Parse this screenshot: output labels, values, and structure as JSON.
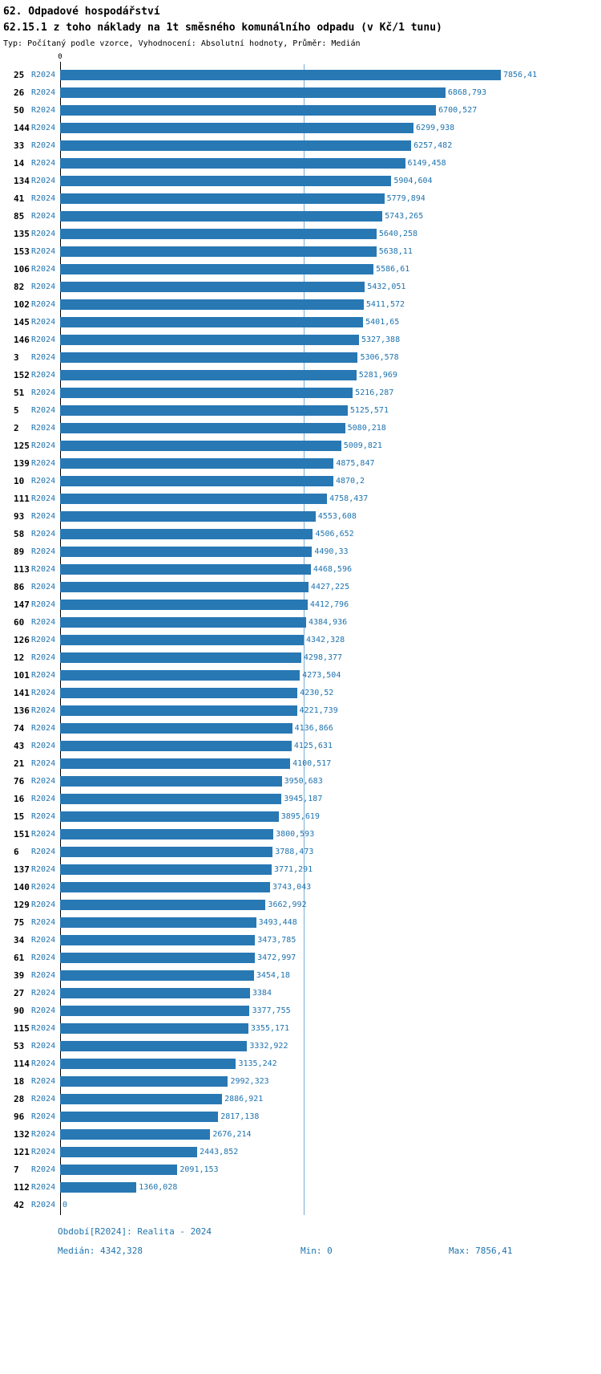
{
  "title": "62. Odpadové hospodářství",
  "subtitle": "62.15.1 z toho náklady na 1t směsného komunálního odpadu (v Kč/1 tunu)",
  "meta": "Typ: Počítaný podle vzorce, Vyhodnocení: Absolutní hodnoty, Průměr: Medián",
  "axis": {
    "zero_label": "0"
  },
  "chart_data": {
    "type": "bar",
    "orientation": "horizontal",
    "title": "62.15.1 z toho náklady na 1t směsného komunálního odpadu (v Kč/1 tunu)",
    "xlabel": "Kč/1 tunu",
    "ylabel": "",
    "series_label": "R2024",
    "xlim": [
      0,
      7856.41
    ],
    "median": 4342.328,
    "grid": false,
    "legend_position": "none",
    "categories": [
      "25",
      "26",
      "50",
      "144",
      "33",
      "14",
      "134",
      "41",
      "85",
      "135",
      "153",
      "106",
      "82",
      "102",
      "145",
      "146",
      "3",
      "152",
      "51",
      "5",
      "2",
      "125",
      "139",
      "10",
      "111",
      "93",
      "58",
      "89",
      "113",
      "86",
      "147",
      "60",
      "126",
      "12",
      "101",
      "141",
      "136",
      "74",
      "43",
      "21",
      "76",
      "16",
      "15",
      "151",
      "6",
      "137",
      "140",
      "129",
      "75",
      "34",
      "61",
      "39",
      "27",
      "90",
      "115",
      "53",
      "114",
      "18",
      "28",
      "96",
      "132",
      "121",
      "7",
      "112",
      "42"
    ],
    "values": [
      7856.41,
      6868.793,
      6700.527,
      6299.938,
      6257.482,
      6149.458,
      5904.604,
      5779.894,
      5743.265,
      5640.258,
      5638.11,
      5586.61,
      5432.051,
      5411.572,
      5401.65,
      5327.388,
      5306.578,
      5281.969,
      5216.287,
      5125.571,
      5080.218,
      5009.821,
      4875.847,
      4870.2,
      4758.437,
      4553.608,
      4506.652,
      4490.33,
      4468.596,
      4427.225,
      4412.796,
      4384.936,
      4342.328,
      4298.377,
      4273.504,
      4230.52,
      4221.739,
      4136.866,
      4125.631,
      4100.517,
      3950.683,
      3945.187,
      3895.619,
      3800.593,
      3788.473,
      3771.291,
      3743.043,
      3662.992,
      3493.448,
      3473.785,
      3472.997,
      3454.18,
      3384,
      3377.755,
      3355.171,
      3332.922,
      3135.242,
      2992.323,
      2886.921,
      2817.138,
      2676.214,
      2443.852,
      2091.153,
      1360.028,
      0
    ],
    "value_labels": [
      "7856,41",
      "6868,793",
      "6700,527",
      "6299,938",
      "6257,482",
      "6149,458",
      "5904,604",
      "5779,894",
      "5743,265",
      "5640,258",
      "5638,11",
      "5586,61",
      "5432,051",
      "5411,572",
      "5401,65",
      "5327,388",
      "5306,578",
      "5281,969",
      "5216,287",
      "5125,571",
      "5080,218",
      "5009,821",
      "4875,847",
      "4870,2",
      "4758,437",
      "4553,608",
      "4506,652",
      "4490,33",
      "4468,596",
      "4427,225",
      "4412,796",
      "4384,936",
      "4342,328",
      "4298,377",
      "4273,504",
      "4230,52",
      "4221,739",
      "4136,866",
      "4125,631",
      "4100,517",
      "3950,683",
      "3945,187",
      "3895,619",
      "3800,593",
      "3788,473",
      "3771,291",
      "3743,043",
      "3662,992",
      "3493,448",
      "3473,785",
      "3472,997",
      "3454,18",
      "3384",
      "3377,755",
      "3355,171",
      "3332,922",
      "3135,242",
      "2992,323",
      "2886,921",
      "2817,138",
      "2676,214",
      "2443,852",
      "2091,153",
      "1360,028",
      "0"
    ],
    "colors": {
      "bar": "#2878b4",
      "blue_text": "#1e73ae",
      "median_line": "#7aaed6",
      "axis": "#000000"
    }
  },
  "footer": {
    "period": "Období[R2024]: Realita - 2024",
    "median": "Medián: 4342,328",
    "min": "Min: 0",
    "max": "Max: 7856,41"
  }
}
